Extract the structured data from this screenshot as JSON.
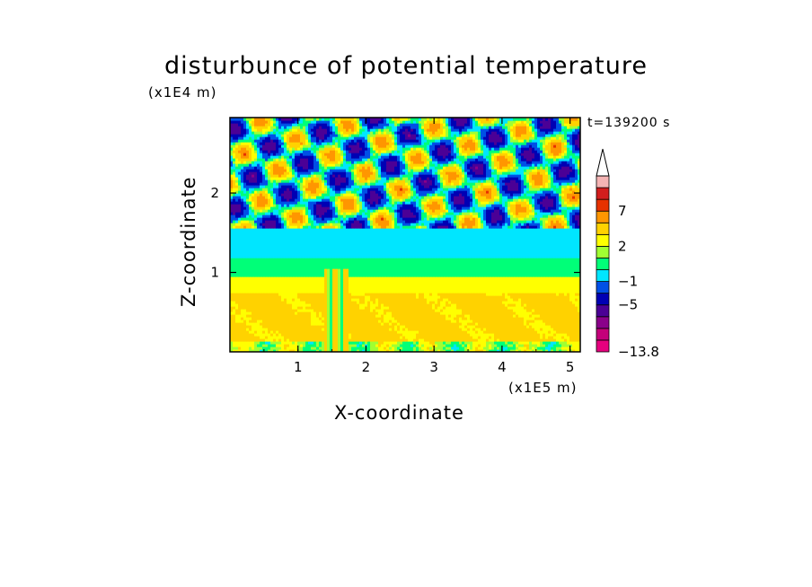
{
  "chart_data": {
    "type": "heatmap",
    "title": "disturbunce of potential temperature",
    "xlabel": "X-coordinate",
    "ylabel": "Z-coordinate",
    "x_unit": "(x1E5 m)",
    "y_unit": "(x1E4 m)",
    "time_label": "t=139200 s",
    "xlim": [
      0,
      5.15
    ],
    "ylim": [
      0,
      2.95
    ],
    "x_ticks": [
      1,
      2,
      3,
      4,
      5
    ],
    "y_ticks": [
      1,
      2
    ],
    "x_tick_labels": [
      "1",
      "2",
      "3",
      "4",
      "5"
    ],
    "y_tick_labels": [
      "1",
      "2"
    ],
    "colorbar": {
      "levels": [
        -13.8,
        -11,
        -9,
        -7,
        -5,
        -3,
        -1,
        0,
        1,
        2,
        3,
        5,
        7,
        9,
        11,
        13
      ],
      "colors": [
        "#e6007e",
        "#c4007a",
        "#8a008a",
        "#4b0096",
        "#0000b4",
        "#0050e6",
        "#00e6ff",
        "#00ff78",
        "#a0ff32",
        "#ffff00",
        "#ffd200",
        "#ff9600",
        "#e63200",
        "#d21e1e",
        "#f5b4b4"
      ],
      "labels": [
        {
          "value": 7,
          "text": "7"
        },
        {
          "value": 2,
          "text": "2"
        },
        {
          "value": -1,
          "text": "−1"
        },
        {
          "value": -5,
          "text": "−5"
        },
        {
          "value": -13.8,
          "text": "−13.8"
        }
      ],
      "extend": "max"
    },
    "field_description_rows": [
      {
        "z_range": [
          0.0,
          0.15
        ],
        "dominant": "green-yellow"
      },
      {
        "z_range": [
          0.15,
          0.75
        ],
        "dominant": "orange"
      },
      {
        "z_range": [
          0.75,
          0.95
        ],
        "dominant": "yellow"
      },
      {
        "z_range": [
          0.95,
          1.2
        ],
        "dominant": "green"
      },
      {
        "z_range": [
          1.2,
          1.55
        ],
        "dominant": "cyan"
      },
      {
        "z_range": [
          1.55,
          2.95
        ],
        "dominant": "mixed waves"
      }
    ]
  }
}
